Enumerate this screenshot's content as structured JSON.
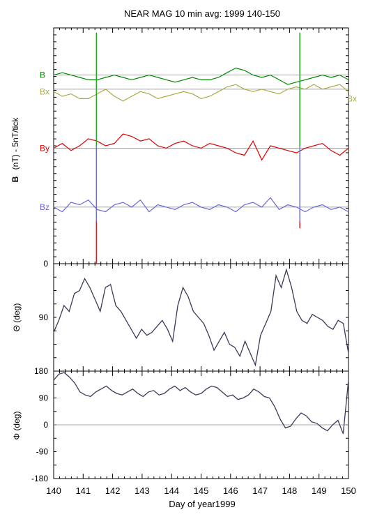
{
  "figure": {
    "title": "NEAR MAG 10 min avg: 1999 140-150",
    "xlabel": "Day of year1999"
  },
  "colors": {
    "B": "#008800",
    "Bx": "#aaaa44",
    "By": "#dd0000",
    "Bz": "#6666dd",
    "angle_trace": "#3a3a5a",
    "marker_top": "#22aa22",
    "marker_mid": "#7070cc",
    "marker_low": "#cc2222",
    "axis": "#000000",
    "zero_line": "#888888"
  },
  "chart_data": [
    {
      "type": "line",
      "panel": "field",
      "ylabel_bold": "B",
      "ylabel_rest": "(nT) - 5nT/tick",
      "xlim": [
        140,
        150
      ],
      "y_tick_labels": [
        "0"
      ],
      "series": [
        {
          "name": "B",
          "key": "B",
          "baseline": 0.8,
          "values": [
            0.8,
            0.81,
            0.8,
            0.79,
            0.78,
            0.78,
            0.79,
            0.8,
            0.79,
            0.78,
            0.79,
            0.8,
            0.79,
            0.78,
            0.77,
            0.78,
            0.79,
            0.78,
            0.78,
            0.79,
            0.81,
            0.83,
            0.82,
            0.8,
            0.79,
            0.8,
            0.78,
            0.76,
            0.77,
            0.78,
            0.79,
            0.8,
            0.79,
            0.8,
            0.78
          ]
        },
        {
          "name": "Bx",
          "key": "Bx",
          "baseline": 0.74,
          "values": [
            0.73,
            0.71,
            0.72,
            0.7,
            0.7,
            0.72,
            0.74,
            0.71,
            0.69,
            0.71,
            0.73,
            0.72,
            0.7,
            0.71,
            0.72,
            0.73,
            0.72,
            0.7,
            0.71,
            0.73,
            0.75,
            0.76,
            0.74,
            0.73,
            0.74,
            0.73,
            0.72,
            0.74,
            0.75,
            0.74,
            0.76,
            0.74,
            0.75,
            0.76,
            0.73
          ]
        },
        {
          "name": "By",
          "key": "By",
          "baseline": 0.49,
          "values": [
            0.49,
            0.51,
            0.48,
            0.5,
            0.53,
            0.52,
            0.5,
            0.51,
            0.55,
            0.54,
            0.52,
            0.53,
            0.5,
            0.49,
            0.51,
            0.52,
            0.5,
            0.49,
            0.51,
            0.5,
            0.49,
            0.47,
            0.46,
            0.52,
            0.44,
            0.5,
            0.49,
            0.48,
            0.47,
            0.49,
            0.5,
            0.51,
            0.48,
            0.46,
            0.49
          ]
        },
        {
          "name": "Bz",
          "key": "Bz",
          "baseline": 0.24,
          "values": [
            0.24,
            0.22,
            0.26,
            0.25,
            0.27,
            0.23,
            0.22,
            0.25,
            0.26,
            0.24,
            0.27,
            0.22,
            0.25,
            0.24,
            0.23,
            0.25,
            0.26,
            0.24,
            0.23,
            0.25,
            0.24,
            0.22,
            0.25,
            0.26,
            0.24,
            0.28,
            0.23,
            0.25,
            0.24,
            0.22,
            0.24,
            0.25,
            0.23,
            0.24,
            0.22
          ]
        }
      ],
      "markers": [
        {
          "day": 141.45,
          "top": 0.98,
          "bottom": 0.0
        },
        {
          "day": 148.35,
          "top": 0.98,
          "bottom": 0.15
        }
      ]
    },
    {
      "type": "line",
      "panel": "theta",
      "ylabel": "Θ (deg)",
      "xlim": [
        140,
        150
      ],
      "ylim": [
        180,
        0
      ],
      "y_ticks": [
        90
      ],
      "y_tick_labels": [
        "90"
      ],
      "series": [
        {
          "name": "",
          "key": "theta",
          "values": [
            115,
            95,
            70,
            80,
            50,
            45,
            25,
            40,
            60,
            80,
            40,
            35,
            70,
            80,
            95,
            110,
            125,
            110,
            120,
            115,
            105,
            95,
            110,
            130,
            70,
            40,
            55,
            80,
            90,
            100,
            120,
            145,
            130,
            115,
            135,
            140,
            155,
            130,
            150,
            170,
            120,
            100,
            80,
            20,
            40,
            10,
            40,
            80,
            95,
            100,
            85,
            90,
            95,
            105,
            110,
            95,
            100,
            150
          ]
        }
      ],
      "zero_line": null
    },
    {
      "type": "line",
      "panel": "phi",
      "ylabel": "Φ (deg)",
      "xlim": [
        140,
        150
      ],
      "ylim": [
        -180,
        180
      ],
      "y_ticks": [
        180,
        90,
        0,
        -90,
        -180
      ],
      "y_tick_labels": [
        "180",
        "90",
        "0",
        "-90",
        "-180"
      ],
      "series": [
        {
          "name": "",
          "key": "phi",
          "values": [
            150,
            170,
            175,
            160,
            140,
            110,
            100,
            95,
            110,
            120,
            130,
            115,
            105,
            100,
            110,
            120,
            105,
            95,
            110,
            115,
            100,
            105,
            120,
            130,
            115,
            125,
            110,
            100,
            105,
            120,
            130,
            125,
            110,
            95,
            100,
            85,
            90,
            100,
            120,
            110,
            95,
            90,
            60,
            20,
            -10,
            -5,
            20,
            40,
            30,
            10,
            5,
            -10,
            -20,
            0,
            15,
            -30,
            150
          ]
        }
      ],
      "zero_line": 0
    }
  ],
  "x_tick_labels": [
    "140",
    "141",
    "142",
    "143",
    "144",
    "145",
    "146",
    "147",
    "148",
    "149",
    "150"
  ]
}
